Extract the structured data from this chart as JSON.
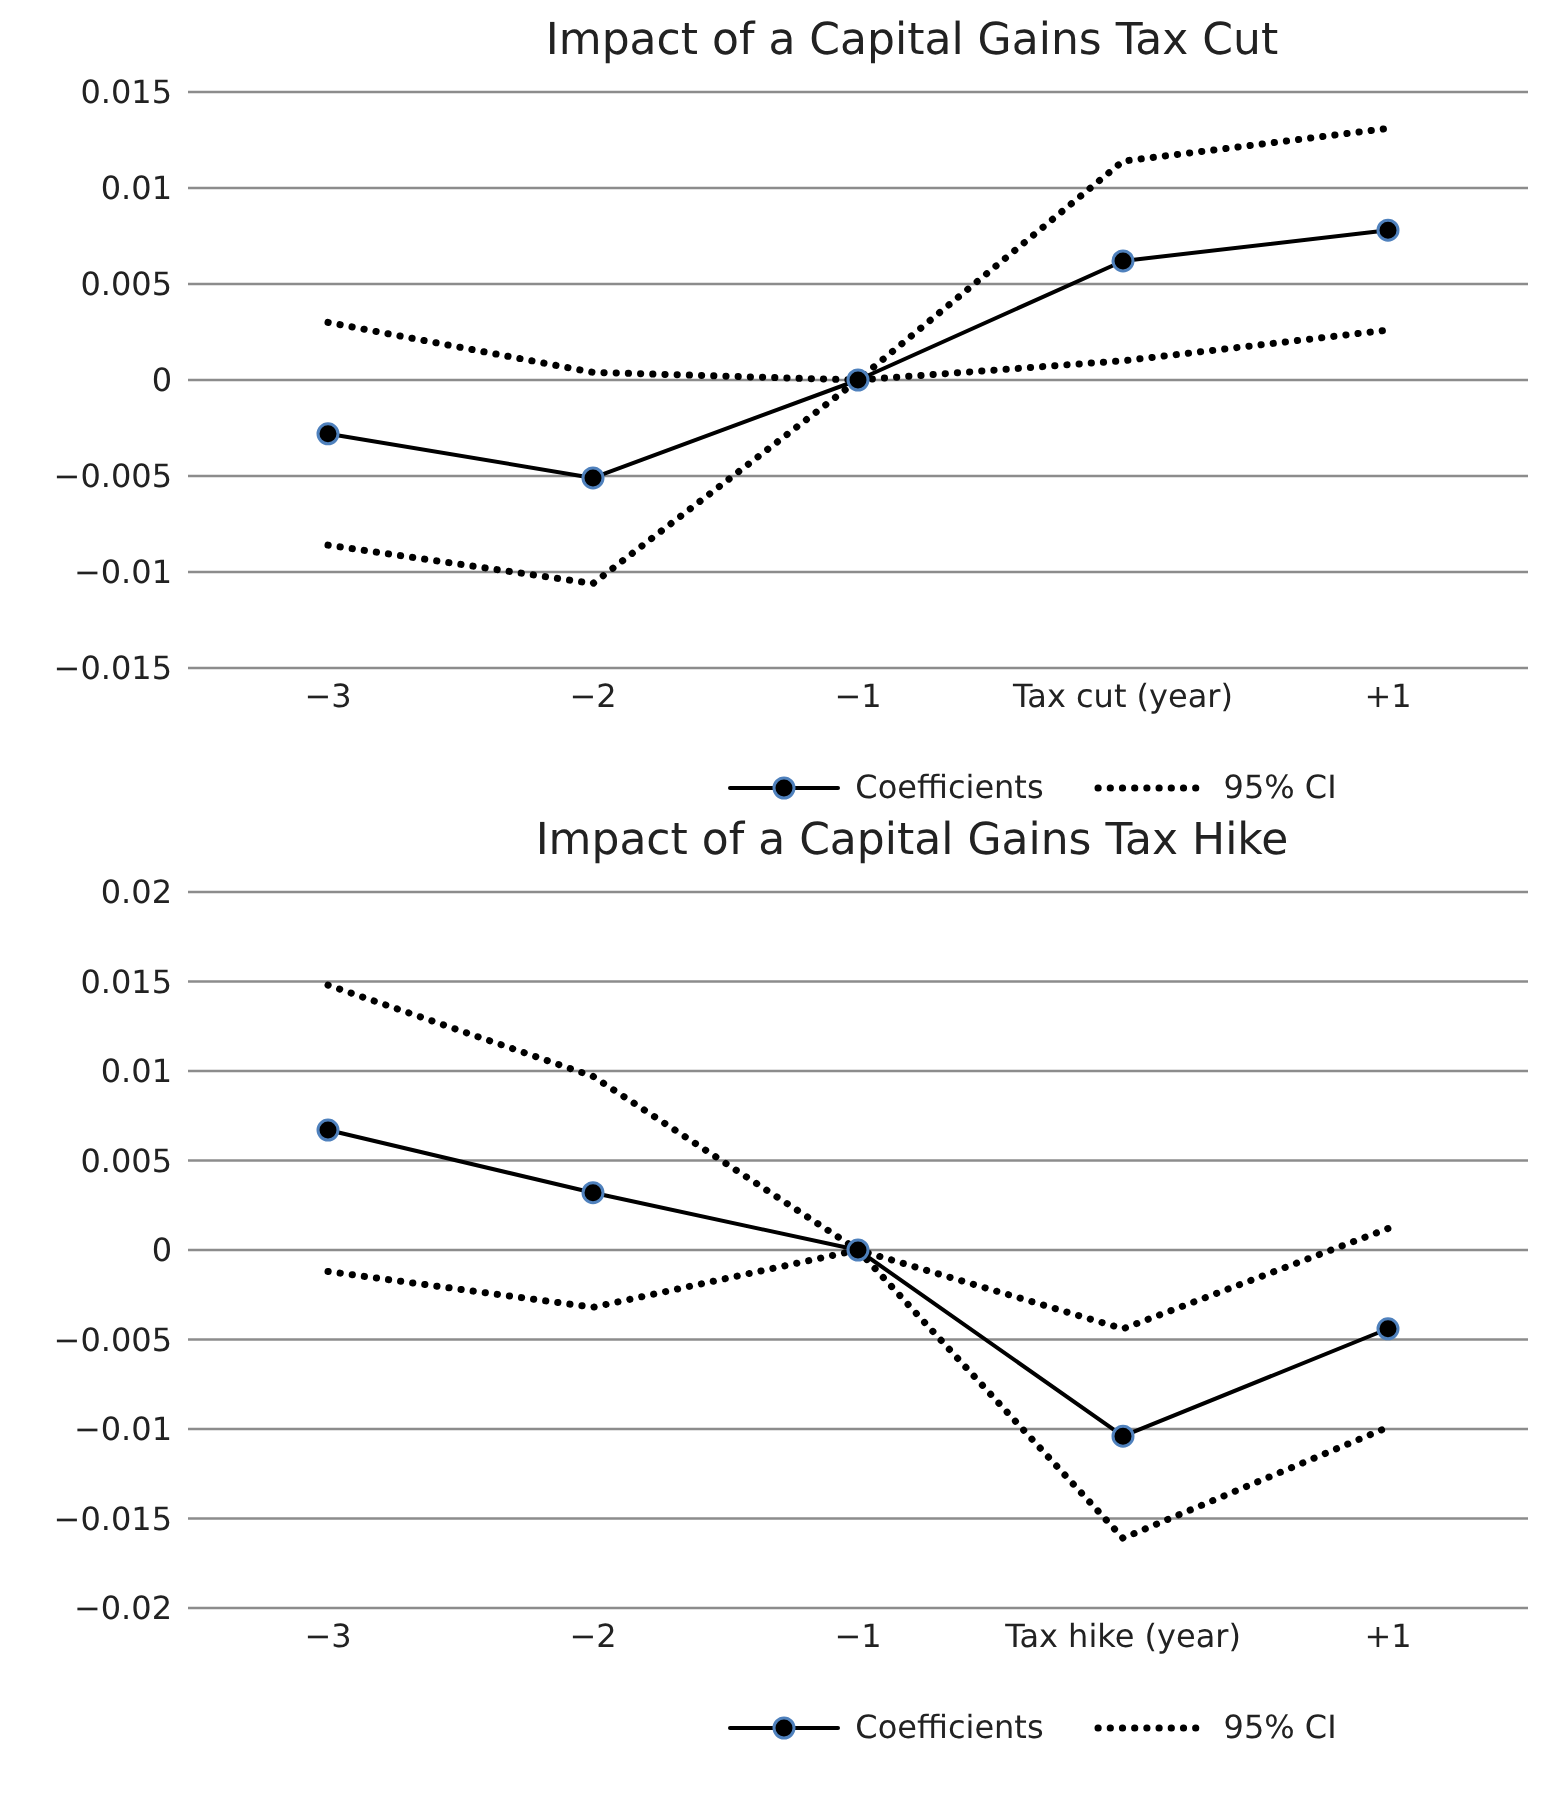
{
  "chart_data": [
    {
      "type": "line",
      "title": "Impact of a Capital Gains Tax Cut",
      "categories": [
        "−3",
        "−2",
        "−1",
        "Tax cut (year)",
        "+1"
      ],
      "series": [
        {
          "name": "Coefficients",
          "color": "#000000",
          "marker": "circle",
          "line_style": "solid",
          "values": [
            -0.0028,
            -0.0051,
            0,
            0.0062,
            0.0078
          ]
        },
        {
          "name": "95% CI",
          "color": "#000000",
          "marker": "none",
          "line_style": "dotted",
          "values": [
            0.003,
            0.0004,
            0,
            0.001,
            0.0026
          ]
        },
        {
          "color": "#000000",
          "marker": "none",
          "line_style": "dotted",
          "values": [
            -0.0086,
            -0.0106,
            0,
            0.0114,
            0.0131
          ]
        }
      ],
      "ylim": [
        -0.015,
        0.015
      ],
      "yticks": [
        {
          "value": -0.015,
          "label": "−0.015"
        },
        {
          "value": -0.01,
          "label": "−0.01"
        },
        {
          "value": -0.005,
          "label": "−0.005"
        },
        0,
        0.005,
        0.01,
        0.015
      ],
      "grid": "y",
      "legend": "bottom"
    },
    {
      "type": "line",
      "title": "Impact of a Capital Gains Tax Hike",
      "categories": [
        "−3",
        "−2",
        "−1",
        "Tax hike (year)",
        "+1"
      ],
      "series": [
        {
          "name": "Coefficients",
          "color": "#000000",
          "marker": "circle",
          "line_style": "solid",
          "values": [
            0.0067,
            0.0032,
            0,
            -0.0104,
            -0.0044
          ]
        },
        {
          "name": "95% CI",
          "color": "#000000",
          "marker": "none",
          "line_style": "dotted",
          "values": [
            0.0148,
            0.0097,
            0,
            -0.0161,
            -0.0099
          ]
        },
        {
          "color": "#000000",
          "marker": "none",
          "line_style": "dotted",
          "values": [
            -0.0012,
            -0.0032,
            0,
            -0.0044,
            0.0012
          ]
        }
      ],
      "ylim": [
        -0.02,
        0.02
      ],
      "yticks": [
        {
          "value": -0.02,
          "label": "−0.02"
        },
        {
          "value": -0.015,
          "label": "−0.015"
        },
        {
          "value": -0.01,
          "label": "−0.01"
        },
        {
          "value": -0.005,
          "label": "−0.005"
        },
        0,
        0.005,
        0.01,
        0.015,
        0.02
      ],
      "grid": "y",
      "legend": "bottom"
    }
  ]
}
